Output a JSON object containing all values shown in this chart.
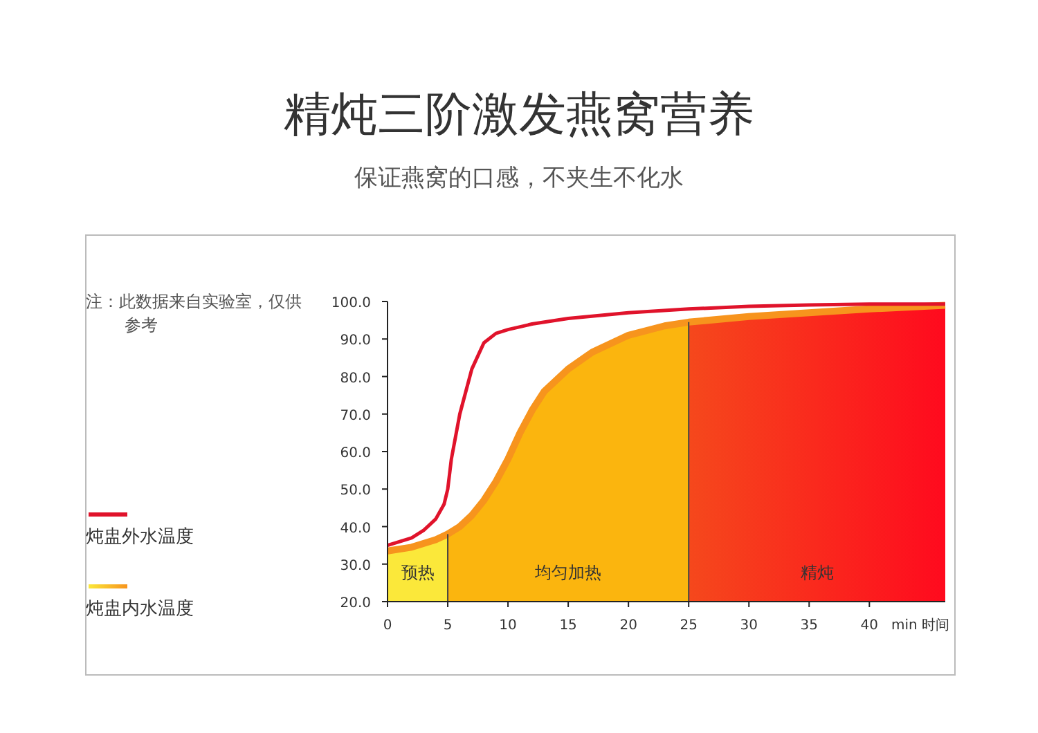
{
  "chart_data": {
    "type": "line",
    "title": "精炖三阶激发燕窝营养",
    "subtitle": "保证燕窝的口感，不夹生不化水",
    "xlabel": "min 时间",
    "annotations": [
      "注：此数据来自实验室，仅供参考"
    ],
    "xlim": [
      0,
      46.3
    ],
    "xticks": [
      0,
      5,
      10,
      15,
      20,
      25,
      30,
      35,
      40
    ],
    "ylim": [
      20,
      100
    ],
    "yticks": [
      {
        "value": 20,
        "label": "20.0"
      },
      {
        "value": 30,
        "label": "30.0"
      },
      {
        "value": 40,
        "label": "40.0"
      },
      {
        "value": 50,
        "label": "50.0"
      },
      {
        "value": 60,
        "label": "60.0"
      },
      {
        "value": 70,
        "label": "70.0"
      },
      {
        "value": 80,
        "label": "80.0"
      },
      {
        "value": 90,
        "label": "90.0"
      },
      {
        "value": 100,
        "label": "100.0"
      }
    ],
    "legend": "bottom left",
    "grid": false,
    "series": [
      {
        "name": "炖盅外水温度",
        "color": "#e0132b",
        "x": [
          0,
          2,
          3,
          4,
          4.7,
          5,
          5.3,
          6,
          7,
          8,
          9,
          10,
          12,
          15,
          20,
          25,
          30,
          35,
          40,
          46.3
        ],
        "values": [
          35,
          37,
          39,
          42,
          46,
          50,
          58,
          70,
          82,
          89,
          91.5,
          92.5,
          94,
          95.5,
          97,
          98,
          98.7,
          99.1,
          99.3,
          99.3
        ]
      },
      {
        "name": "炖盅内水温度",
        "type": "area",
        "color": "#f7941d",
        "x": [
          0,
          2,
          4,
          5,
          6,
          7,
          8,
          9,
          10,
          11,
          12,
          13,
          15,
          17,
          20,
          23,
          25,
          30,
          35,
          40,
          46.3
        ],
        "values": [
          33.5,
          34.5,
          36.5,
          38,
          40,
          43,
          47,
          52,
          58,
          65,
          71,
          76,
          82,
          86.5,
          91,
          93.5,
          94.5,
          96,
          97,
          98,
          99
        ]
      }
    ],
    "ref_lines": [
      {
        "axis": "x",
        "value": 5,
        "color": "#444444"
      },
      {
        "axis": "x",
        "value": 25,
        "color": "#444444"
      }
    ],
    "bands": [
      {
        "axis": "x",
        "from": 0,
        "to": 5,
        "label": "预热",
        "color": "#fbe83a"
      },
      {
        "axis": "x",
        "from": 5,
        "to": 25,
        "label": "均匀加热",
        "color": "#fbb50e"
      },
      {
        "axis": "x",
        "from": 25,
        "to": 46.3,
        "label": "精炖",
        "color": "#f5481c"
      }
    ]
  }
}
